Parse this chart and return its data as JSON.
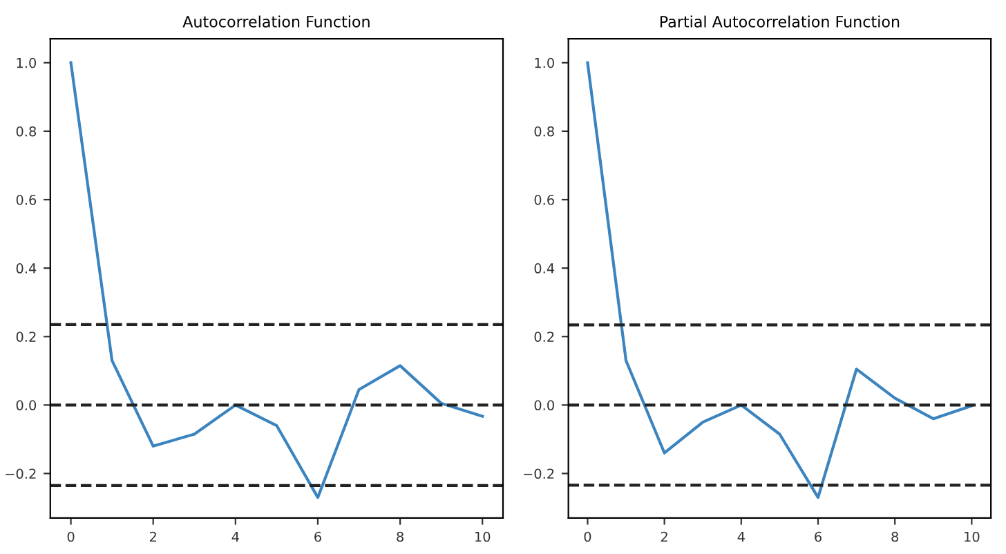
{
  "chart_data": [
    {
      "type": "line",
      "title": "Autocorrelation Function",
      "x": [
        0,
        1,
        2,
        3,
        4,
        5,
        6,
        7,
        8,
        9,
        10
      ],
      "series": [
        {
          "color": "#3b84bf",
          "values": [
            1.0,
            0.13,
            -0.12,
            -0.085,
            0.0,
            -0.06,
            -0.27,
            0.045,
            0.115,
            0.005,
            -0.033
          ]
        }
      ],
      "xlim": [
        -0.5,
        10.5
      ],
      "ylim": [
        -0.33,
        1.07
      ],
      "xticks": [
        0,
        2,
        4,
        6,
        8,
        10
      ],
      "yticks": [
        {
          "value": -0.2,
          "label": "−0.2"
        },
        {
          "value": 0,
          "label": "0.0"
        },
        0.2,
        0.4,
        0.6,
        0.8,
        {
          "value": 1,
          "label": "1.0"
        }
      ],
      "grid": false,
      "legend": false,
      "ref_lines": [
        {
          "axis": "y",
          "value": -0.235,
          "color": "#222222",
          "line_style": "dashed"
        },
        {
          "axis": "y",
          "value": 0,
          "color": "#222222",
          "line_style": "dashed"
        },
        {
          "axis": "y",
          "value": 0.235,
          "color": "#222222",
          "line_style": "dashed"
        }
      ]
    },
    {
      "type": "line",
      "title": "Partial Autocorrelation Function",
      "x": [
        0,
        1,
        2,
        3,
        4,
        5,
        6,
        7,
        8,
        9,
        10
      ],
      "series": [
        {
          "color": "#3b84bf",
          "values": [
            1.0,
            0.13,
            -0.14,
            -0.05,
            0.0,
            -0.085,
            -0.27,
            0.105,
            0.02,
            -0.04,
            -0.002
          ]
        }
      ],
      "xlim": [
        -0.5,
        10.5
      ],
      "ylim": [
        -0.33,
        1.07
      ],
      "xticks": [
        0,
        2,
        4,
        6,
        8,
        10
      ],
      "yticks": [
        {
          "value": -0.2,
          "label": "−0.2"
        },
        {
          "value": 0,
          "label": "0.0"
        },
        0.2,
        0.4,
        0.6,
        0.8,
        {
          "value": 1,
          "label": "1.0"
        }
      ],
      "grid": false,
      "legend": false,
      "ref_lines": [
        {
          "axis": "y",
          "value": -0.234,
          "color": "#222222",
          "line_style": "dashed"
        },
        {
          "axis": "y",
          "value": 0,
          "color": "#222222",
          "line_style": "dashed"
        },
        {
          "axis": "y",
          "value": 0.234,
          "color": "#222222",
          "line_style": "dashed"
        }
      ]
    }
  ]
}
